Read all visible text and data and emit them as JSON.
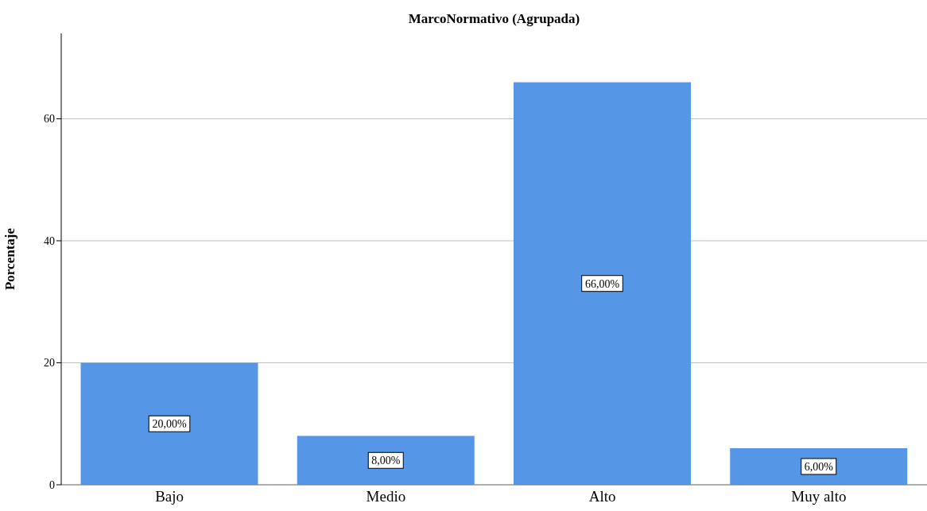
{
  "chart_data": {
    "type": "bar",
    "title": "MarcoNormativo (Agrupada)",
    "ylabel": "Porcentaje",
    "categories": [
      "Bajo",
      "Medio",
      "Alto",
      "Muy alto"
    ],
    "values": [
      20,
      8,
      66,
      6
    ],
    "value_labels": [
      "20,00%",
      "8,00%",
      "66,00%",
      "6,00%"
    ],
    "color": "#5596e6",
    "ylim": [
      0,
      74
    ],
    "yticks": [
      0,
      20,
      40,
      60
    ],
    "grid": "y"
  }
}
